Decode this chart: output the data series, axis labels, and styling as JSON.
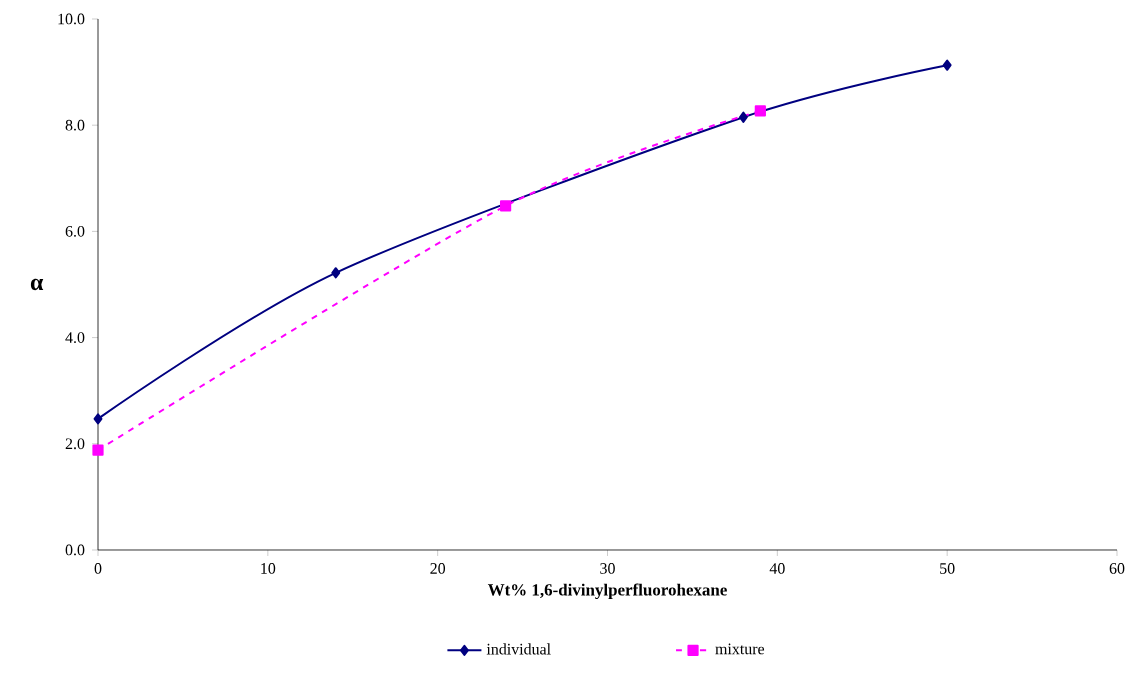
{
  "chart_data": {
    "type": "line",
    "xlabel": "Wt% 1,6-divinylperfluorohexane",
    "ylabel": "α",
    "series": [
      {
        "name": "individual",
        "color": "#000080",
        "marker": "diamond",
        "line_style": "solid",
        "x": [
          0,
          14,
          38,
          50
        ],
        "values": [
          2.47,
          5.22,
          8.15,
          9.13
        ]
      },
      {
        "name": "mixture",
        "color": "#ff00ff",
        "marker": "square",
        "line_style": "dashed",
        "x": [
          0,
          24,
          39
        ],
        "values": [
          1.88,
          6.48,
          8.27
        ]
      }
    ],
    "xlim": [
      0,
      60
    ],
    "xticks": [
      0,
      10,
      20,
      30,
      40,
      50,
      60
    ],
    "ylim": [
      0,
      10
    ],
    "yticks": [
      {
        "value": 0,
        "label": "0.0"
      },
      {
        "value": 2,
        "label": "2.0"
      },
      {
        "value": 4,
        "label": "4.0"
      },
      {
        "value": 6,
        "label": "6.0"
      },
      {
        "value": 8,
        "label": "8.0"
      },
      {
        "value": 10,
        "label": "10.0"
      }
    ],
    "grid": false,
    "legend": "bottom"
  }
}
